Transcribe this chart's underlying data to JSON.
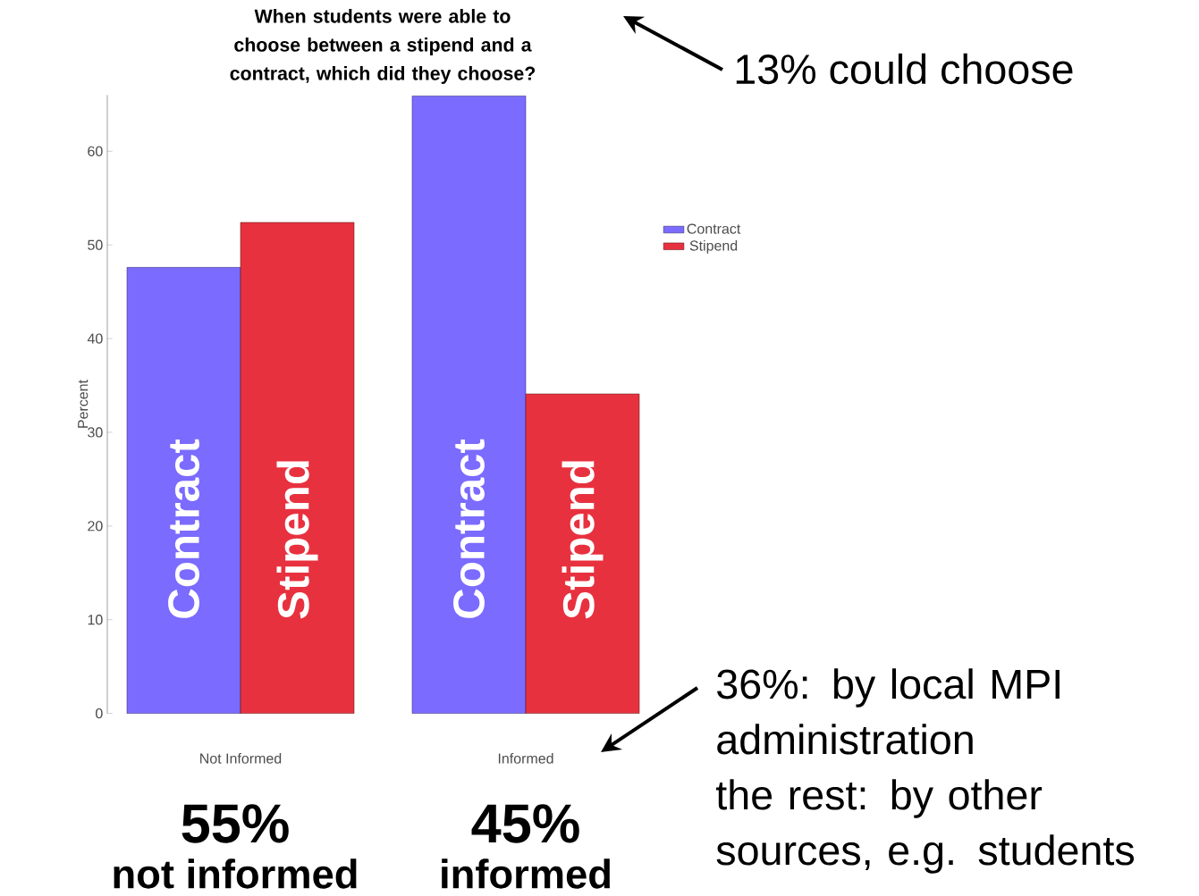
{
  "chart_data": {
    "type": "bar",
    "title": "When students were able to choose between a stipend and a contract, which did they choose?",
    "ylabel": "Percent",
    "categories": [
      "Not Informed",
      "Informed"
    ],
    "series": [
      {
        "name": "Contract",
        "color": "#7b6bff",
        "values": [
          47.6,
          65.9
        ]
      },
      {
        "name": "Stipend",
        "color": "#e8313f",
        "values": [
          52.4,
          34.1
        ]
      }
    ],
    "ylim": [
      0,
      66
    ],
    "yticks": [
      0,
      10,
      20,
      30,
      40,
      50,
      60
    ],
    "grid": false,
    "legend": "right",
    "annotations": [
      "13% could choose",
      "55%",
      "not informed",
      "45%",
      "informed",
      "36%: by local MPI administration",
      "the rest: by other sources, e.g. students"
    ]
  }
}
